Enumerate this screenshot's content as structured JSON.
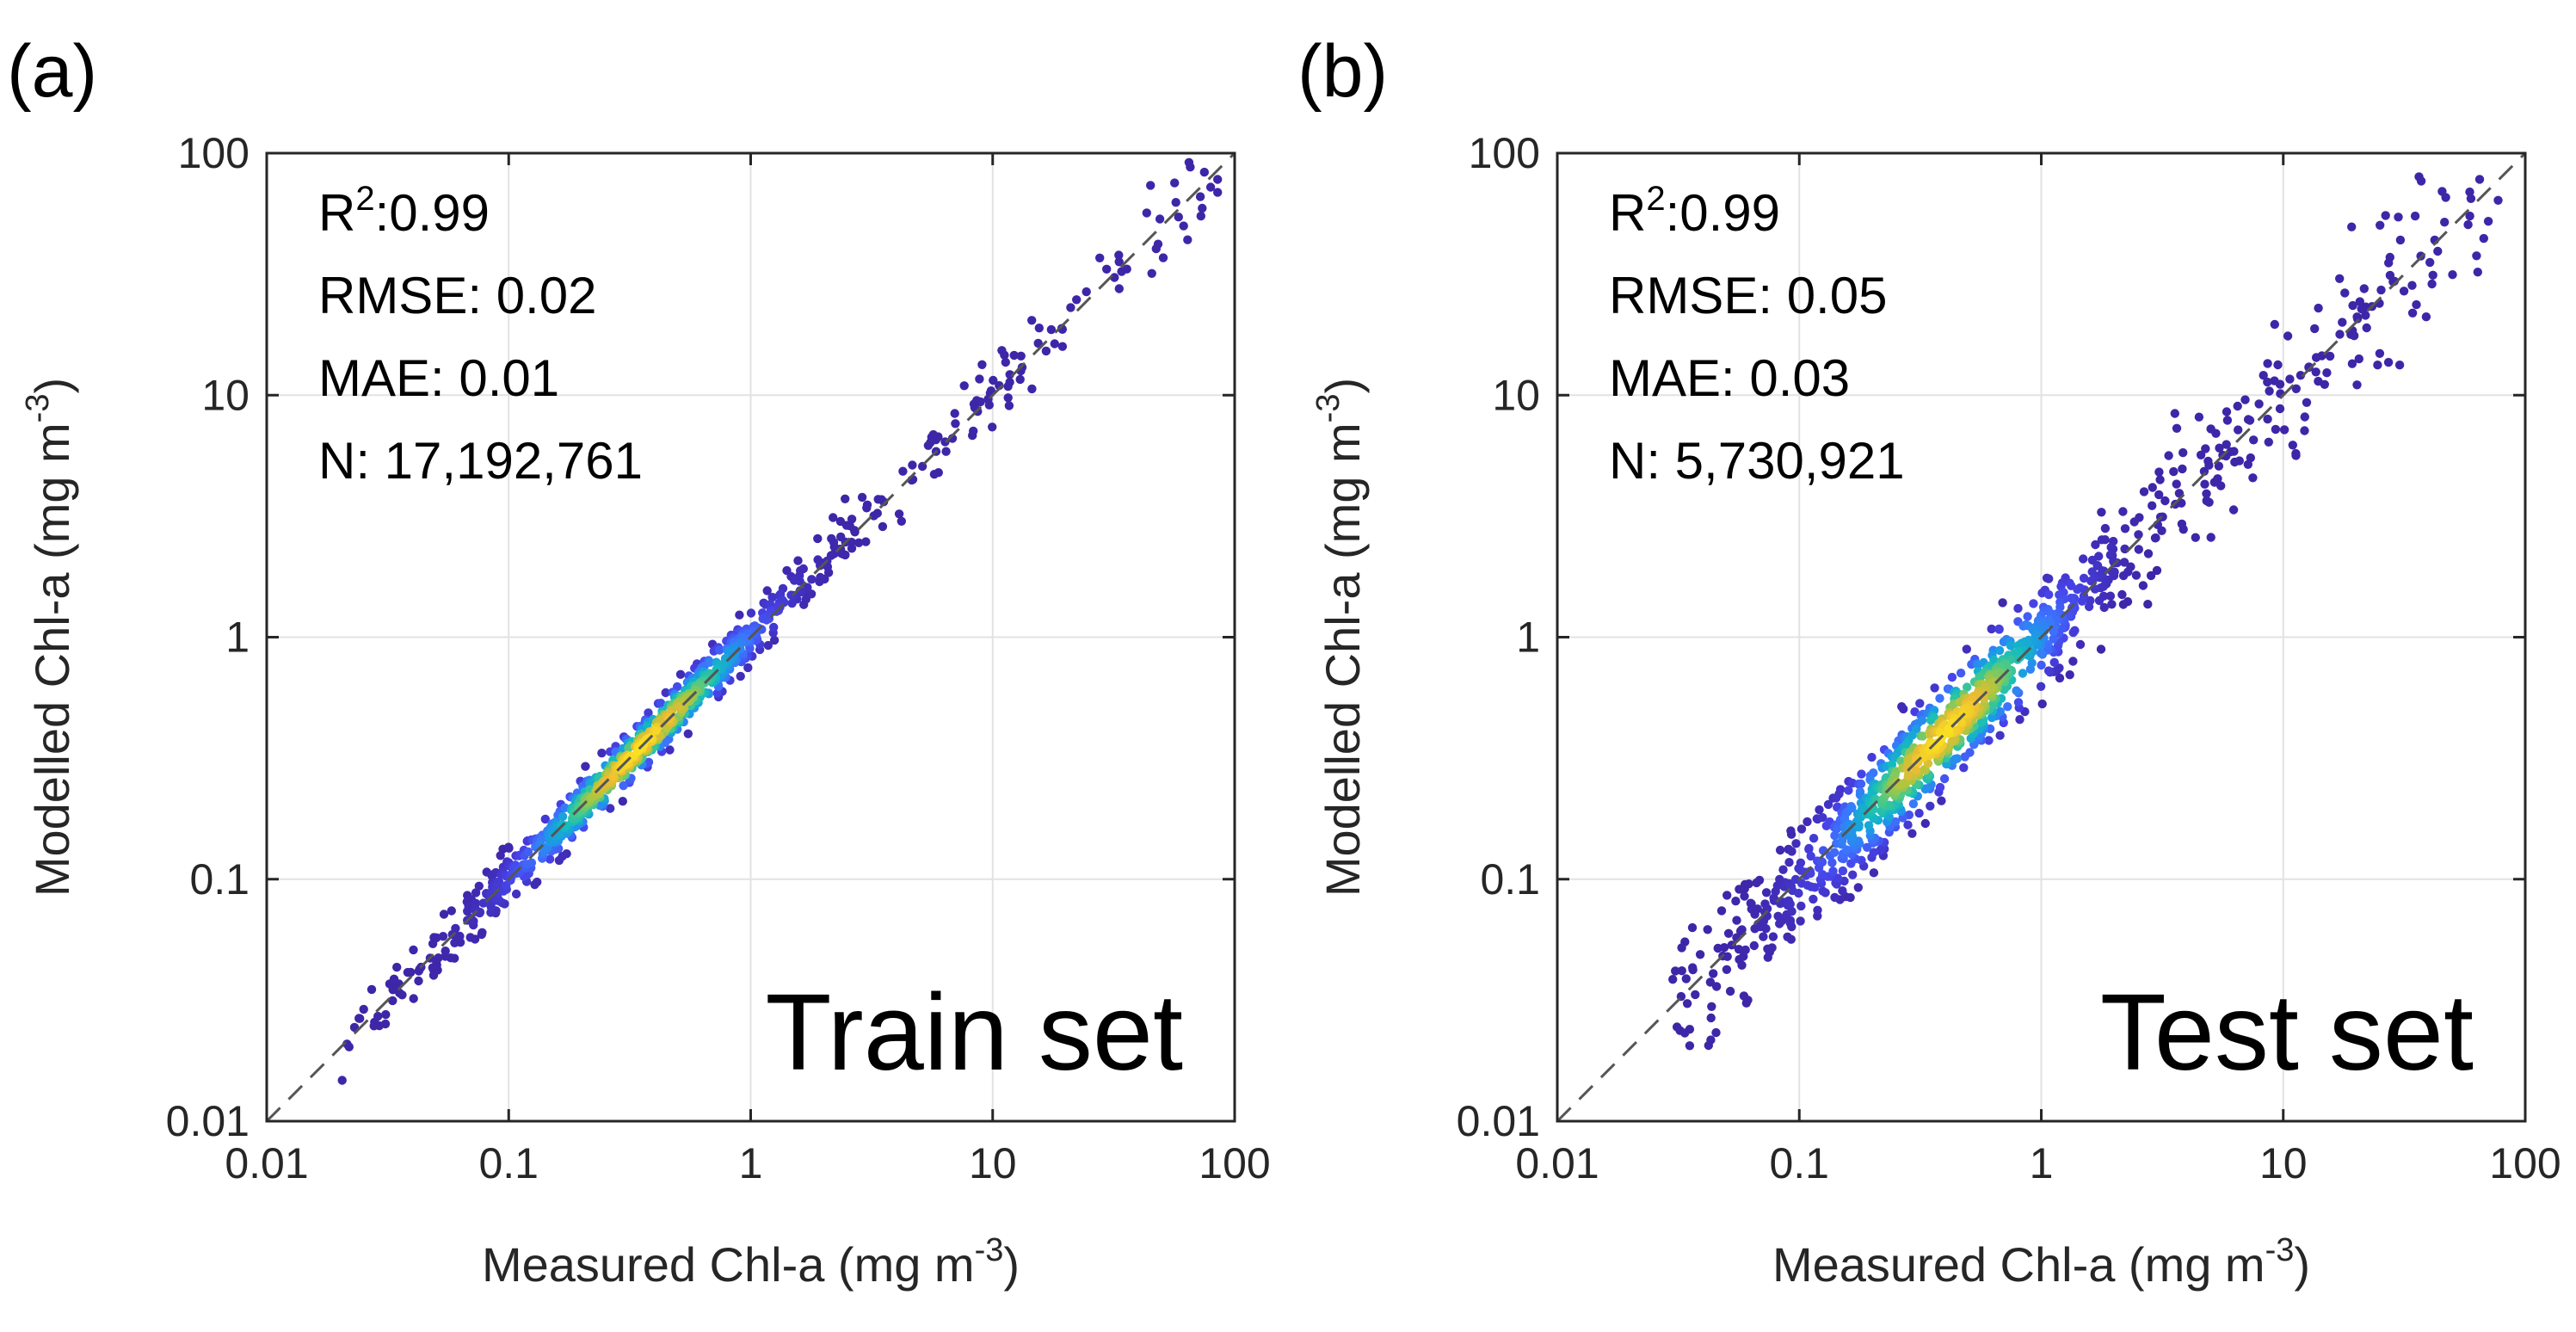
{
  "colors": {
    "background": "#ffffff",
    "axis": "#262626",
    "grid": "#e2e2e2",
    "diagonal": "#555555",
    "text": "#000000",
    "tick_text": "#262626",
    "colormap": [
      "#3e26a8",
      "#4743e8",
      "#3d73fe",
      "#1b9ce3",
      "#14bbbf",
      "#48c98b",
      "#a7c742",
      "#ecbb33",
      "#f9e021"
    ]
  },
  "chart_data": [
    {
      "panel": "(a)",
      "type": "scatter",
      "set_label": "Train set",
      "xlabel": "Measured Chl-a (mg m",
      "ylabel": "Modelled Chl-a (mg m",
      "unit_exponent": "-3",
      "unit_close": ")",
      "xscale": "log",
      "yscale": "log",
      "xlim": [
        0.01,
        100
      ],
      "ylim": [
        0.01,
        100
      ],
      "xticks": [
        0.01,
        0.1,
        1,
        10,
        100
      ],
      "xtick_labels": [
        "0.01",
        "0.1",
        "1",
        "10",
        "100"
      ],
      "yticks": [
        0.01,
        0.1,
        1,
        10,
        100
      ],
      "ytick_labels": [
        "0.01",
        "0.1",
        "1",
        "10",
        "100"
      ],
      "grid": true,
      "reference_line": "1:1 dashed",
      "stats": {
        "r2_label": "R",
        "r2_sup": "2",
        "r2_value": ":0.99",
        "rmse": "RMSE: 0.02",
        "mae": "MAE: 0.01",
        "n": "N: 17,192,761"
      },
      "distribution": {
        "x_range": [
          0.02,
          90
        ],
        "density_peak_x": 0.35,
        "log_spread": 0.05,
        "spread_growth": 0.02,
        "n_points_drawn": 900
      }
    },
    {
      "panel": "(b)",
      "type": "scatter",
      "set_label": "Test set",
      "xlabel": "Measured Chl-a (mg m",
      "ylabel": "Modelled Chl-a (mg m",
      "unit_exponent": "-3",
      "unit_close": ")",
      "xscale": "log",
      "yscale": "log",
      "xlim": [
        0.01,
        100
      ],
      "ylim": [
        0.01,
        100
      ],
      "xticks": [
        0.01,
        0.1,
        1,
        10,
        100
      ],
      "xtick_labels": [
        "0.01",
        "0.1",
        "1",
        "10",
        "100"
      ],
      "yticks": [
        0.01,
        0.1,
        1,
        10,
        100
      ],
      "ytick_labels": [
        "0.01",
        "0.1",
        "1",
        "10",
        "100"
      ],
      "grid": true,
      "reference_line": "1:1 dashed",
      "stats": {
        "r2_label": "R",
        "r2_sup": "2",
        "r2_value": ":0.99",
        "rmse": "RMSE: 0.05",
        "mae": "MAE: 0.03",
        "n": "N: 5,730,921"
      },
      "distribution": {
        "x_range": [
          0.03,
          85
        ],
        "density_peak_x": 0.4,
        "log_spread": 0.1,
        "spread_growth": 0.035,
        "n_points_drawn": 1100
      }
    }
  ]
}
